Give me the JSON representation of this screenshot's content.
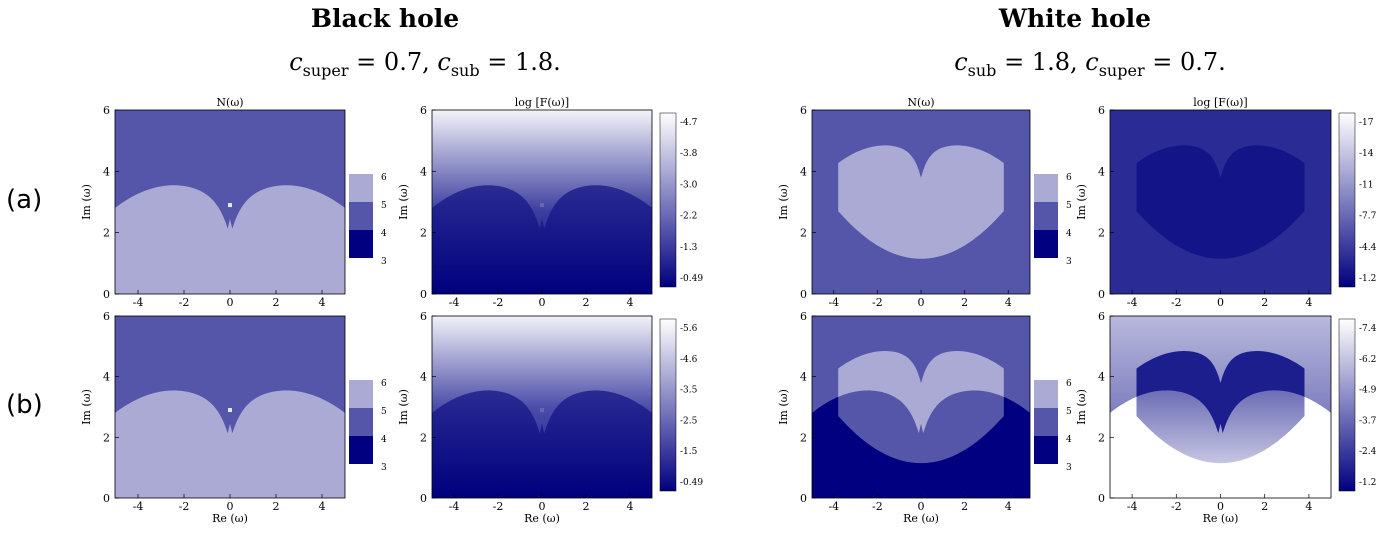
{
  "columns": {
    "left": {
      "title": "Black hole",
      "params": {
        "first_sym": "c",
        "first_sub": "super",
        "first_val": "0.7",
        "second_sym": "c",
        "second_sub": "sub",
        "second_val": "1.8."
      }
    },
    "right": {
      "title": "White hole",
      "params": {
        "first_sym": "c",
        "first_sub": "sub",
        "first_val": "1.8",
        "second_sym": "c",
        "second_sub": "super",
        "second_val": "0.7."
      }
    }
  },
  "rows": [
    "(a)",
    "(b)"
  ],
  "colors": {
    "dark": "#000080",
    "mid": "#5556a9",
    "light": "#aaaad4",
    "white": "#ffffff"
  },
  "chart_data": [
    {
      "type": "heatmap",
      "id": "bh_a_N",
      "title": "N(ω)",
      "ylabel": "Im (ω)",
      "xlabel": "",
      "x_ticks": [
        "-4",
        "-2",
        "0",
        "2",
        "4"
      ],
      "y_ticks": [
        "0",
        "2",
        "4",
        "6"
      ],
      "xlim": [
        -5,
        5
      ],
      "ylim": [
        0,
        6
      ],
      "colorbar": {
        "labels": [
          "6",
          "5",
          "4",
          "3"
        ],
        "kind": "discrete"
      }
    },
    {
      "type": "heatmap",
      "id": "bh_a_F",
      "title": "log [F(ω)]",
      "ylabel": "Im (ω)",
      "xlabel": "",
      "x_ticks": [
        "-4",
        "-2",
        "0",
        "2",
        "4"
      ],
      "y_ticks": [
        "0",
        "2",
        "4",
        "6"
      ],
      "xlim": [
        -5,
        5
      ],
      "ylim": [
        0,
        6
      ],
      "colorbar": {
        "labels": [
          "-4.7",
          "-3.8",
          "-3.0",
          "-2.2",
          "-1.3",
          "-0.49"
        ],
        "kind": "continuous"
      }
    },
    {
      "type": "heatmap",
      "id": "wh_a_N",
      "title": "N(ω)",
      "ylabel": "Im (ω)",
      "xlabel": "",
      "x_ticks": [
        "-4",
        "-2",
        "0",
        "2",
        "4"
      ],
      "y_ticks": [
        "0",
        "2",
        "4",
        "6"
      ],
      "xlim": [
        -5,
        5
      ],
      "ylim": [
        0,
        6
      ],
      "colorbar": {
        "labels": [
          "6",
          "5",
          "4",
          "3"
        ],
        "kind": "discrete"
      }
    },
    {
      "type": "heatmap",
      "id": "wh_a_F",
      "title": "log [F(ω)]",
      "ylabel": "Im (ω)",
      "xlabel": "",
      "x_ticks": [
        "-4",
        "-2",
        "0",
        "2",
        "4"
      ],
      "y_ticks": [
        "0",
        "2",
        "4",
        "6"
      ],
      "xlim": [
        -5,
        5
      ],
      "ylim": [
        0,
        6
      ],
      "colorbar": {
        "labels": [
          "-17",
          "-14",
          "-11",
          "-7.7",
          "-4.4",
          "-1.2"
        ],
        "kind": "continuous"
      }
    },
    {
      "type": "heatmap",
      "id": "bh_b_N",
      "title": "",
      "ylabel": "Im (ω)",
      "xlabel": "Re (ω)",
      "x_ticks": [
        "-4",
        "-2",
        "0",
        "2",
        "4"
      ],
      "y_ticks": [
        "0",
        "2",
        "4",
        "6"
      ],
      "xlim": [
        -5,
        5
      ],
      "ylim": [
        0,
        6
      ],
      "colorbar": {
        "labels": [
          "6",
          "5",
          "4",
          "3"
        ],
        "kind": "discrete"
      }
    },
    {
      "type": "heatmap",
      "id": "bh_b_F",
      "title": "",
      "ylabel": "Im (ω)",
      "xlabel": "Re (ω)",
      "x_ticks": [
        "-4",
        "-2",
        "0",
        "2",
        "4"
      ],
      "y_ticks": [
        "0",
        "2",
        "4",
        "6"
      ],
      "xlim": [
        -5,
        5
      ],
      "ylim": [
        0,
        6
      ],
      "colorbar": {
        "labels": [
          "-5.6",
          "-4.6",
          "-3.5",
          "-2.5",
          "-1.5",
          "-0.49"
        ],
        "kind": "continuous"
      }
    },
    {
      "type": "heatmap",
      "id": "wh_b_N",
      "title": "",
      "ylabel": "Im (ω)",
      "xlabel": "Re (ω)",
      "x_ticks": [
        "-4",
        "-2",
        "0",
        "2",
        "4"
      ],
      "y_ticks": [
        "0",
        "2",
        "4",
        "6"
      ],
      "xlim": [
        -5,
        5
      ],
      "ylim": [
        0,
        6
      ],
      "colorbar": {
        "labels": [
          "6",
          "5",
          "4",
          "3"
        ],
        "kind": "discrete"
      }
    },
    {
      "type": "heatmap",
      "id": "wh_b_F",
      "title": "",
      "ylabel": "Im (ω)",
      "xlabel": "Re (ω)",
      "x_ticks": [
        "-4",
        "-2",
        "0",
        "2",
        "4"
      ],
      "y_ticks": [
        "0",
        "2",
        "4",
        "6"
      ],
      "xlim": [
        -5,
        5
      ],
      "ylim": [
        0,
        6
      ],
      "colorbar": {
        "labels": [
          "-7.4",
          "-6.2",
          "-4.9",
          "-3.7",
          "-2.4",
          "-1.2"
        ],
        "kind": "continuous"
      }
    }
  ]
}
